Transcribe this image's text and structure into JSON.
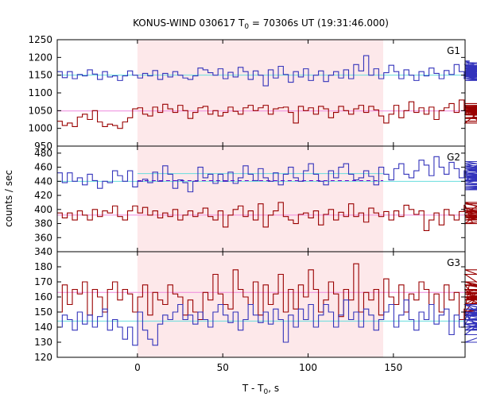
{
  "chart_data": {
    "type": "line",
    "title": "KONUS-WIND 030617 T0 = 70306s UT (19:31:46.000)",
    "title_parts": {
      "before": "KONUS-WIND 030617 T",
      "sub": "0",
      "after": " = 70306s UT (19:31:46.000)"
    },
    "xlabel_parts": {
      "before": "T - T",
      "sub": "0",
      "after": ", s"
    },
    "ylabel": "counts / sec",
    "xlim": [
      -47,
      192
    ],
    "x_ticks": [
      0,
      50,
      100,
      150
    ],
    "x_tick_labels": [
      "0",
      "50",
      "100",
      "150"
    ],
    "bin_width": 2.944,
    "shaded_interval": [
      0,
      144
    ],
    "colors": {
      "band": "#fde8ea",
      "blue": "#3333bb",
      "red": "#990000",
      "bg_blue": "#66dddd",
      "bg_red": "#ee88dd",
      "dash": "#6600cc"
    },
    "panels": [
      {
        "label": "G1",
        "ylim": [
          950,
          1250
        ],
        "y_ticks": [
          950,
          1000,
          1050,
          1100,
          1150,
          1200,
          1250
        ],
        "y_tick_labels": [
          "950",
          "1000",
          "1050",
          "1100",
          "1150",
          "1200",
          "1250"
        ],
        "background_levels": [
          {
            "color": "bg_blue",
            "level": 1150
          },
          {
            "color": "bg_red",
            "level": 1049
          }
        ],
        "series": [
          {
            "color": "blue",
            "values": [
              1160,
              1143,
              1160,
              1140,
              1152,
              1148,
              1165,
              1153,
              1138,
              1160,
              1145,
              1148,
              1135,
              1148,
              1162,
              1150,
              1142,
              1155,
              1148,
              1163,
              1138,
              1155,
              1145,
              1160,
              1150,
              1142,
              1138,
              1148,
              1170,
              1165,
              1157,
              1150,
              1168,
              1140,
              1158,
              1145,
              1172,
              1160,
              1138,
              1162,
              1150,
              1120,
              1165,
              1142,
              1175,
              1152,
              1130,
              1160,
              1145,
              1168,
              1135,
              1150,
              1162,
              1132,
              1150,
              1160,
              1142,
              1165,
              1140,
              1180,
              1162,
              1205,
              1150,
              1168,
              1140,
              1157,
              1178,
              1160,
              1140,
              1165,
              1150,
              1135,
              1160,
              1148,
              1170,
              1155,
              1140,
              1163,
              1152,
              1180,
              1160,
              1140,
              1190,
              1180,
              1155,
              1172,
              1162,
              1135,
              1148,
              1165,
              1152,
              1177,
              1140,
              1170,
              1155,
              1185,
              1160,
              1145,
              1170,
              1155,
              1140,
              1175,
              1160,
              1150,
              1168,
              1135,
              1160,
              1145,
              1170,
              1162,
              1150,
              1140,
              1155,
              1160,
              1145,
              1155,
              1148,
              1160,
              1150,
              1148,
              1165,
              1150,
              1158
            ]
          },
          {
            "color": "red",
            "values": [
              1020,
              1008,
              1015,
              1005,
              1032,
              1040,
              1025,
              1050,
              1018,
              1005,
              1012,
              1008,
              1000,
              1018,
              1030,
              1055,
              1058,
              1040,
              1035,
              1060,
              1045,
              1068,
              1055,
              1045,
              1065,
              1050,
              1028,
              1045,
              1058,
              1062,
              1040,
              1050,
              1035,
              1045,
              1060,
              1048,
              1040,
              1058,
              1065,
              1050,
              1058,
              1065,
              1040,
              1055,
              1058,
              1060,
              1045,
              1015,
              1062,
              1050,
              1058,
              1040,
              1062,
              1055,
              1030,
              1045,
              1062,
              1050,
              1040,
              1055,
              1065,
              1045,
              1062,
              1052,
              1035,
              1015,
              1040,
              1065,
              1030,
              1050,
              1075,
              1045,
              1058,
              1040,
              1060,
              1025,
              1050,
              1058,
              1070,
              1045,
              1080,
              1052,
              1040,
              1065,
              1015,
              1058,
              1045,
              1062,
              1050,
              1040,
              1055,
              1060,
              1045,
              1050,
              1055,
              1045,
              1040,
              1058,
              1050,
              1045,
              1052,
              1060,
              1040,
              1045,
              1055,
              1050,
              1030,
              1045,
              1038,
              1028,
              1020,
              1030,
              1040,
              1060,
              1045,
              1048,
              1030,
              1055,
              1045,
              1060,
              1065,
              1058,
              1070
            ]
          }
        ]
      },
      {
        "label": "G2",
        "ylim": [
          340,
          490
        ],
        "y_ticks": [
          340,
          360,
          380,
          400,
          420,
          440,
          460,
          480
        ],
        "y_tick_labels": [
          "340",
          "360",
          "380",
          "400",
          "420",
          "440",
          "460",
          "480"
        ],
        "background_levels": [
          {
            "color": "bg_blue",
            "level": 440
          },
          {
            "color": "bg_red",
            "level": 392
          },
          {
            "color": "bg_blue",
            "level": 451,
            "from": 0,
            "to": 144
          },
          {
            "color": "dash",
            "level": 441,
            "from": 0,
            "to": 144,
            "dashed": true
          }
        ],
        "series": [
          {
            "color": "blue",
            "values": [
              452,
              438,
              452,
              440,
              445,
              435,
              450,
              441,
              430,
              440,
              438,
              455,
              448,
              440,
              455,
              432,
              440,
              443,
              438,
              453,
              440,
              462,
              450,
              430,
              442,
              438,
              425,
              440,
              460,
              445,
              450,
              437,
              450,
              440,
              453,
              437,
              445,
              462,
              450,
              441,
              458,
              445,
              440,
              452,
              435,
              450,
              460,
              445,
              440,
              455,
              465,
              450,
              440,
              435,
              455,
              445,
              460,
              465,
              450,
              442,
              445,
              455,
              447,
              435,
              460,
              450,
              442,
              458,
              465,
              450,
              445,
              455,
              470,
              463,
              448,
              475,
              460,
              450,
              467,
              458,
              445,
              455,
              440,
              452,
              465,
              458,
              448,
              440,
              455,
              462,
              450,
              445,
              437,
              458,
              447,
              440,
              455,
              448,
              435,
              445,
              460,
              450,
              468,
              440,
              450,
              445,
              432,
              445,
              428,
              440,
              448,
              435,
              445,
              430,
              442,
              448,
              435,
              445,
              440,
              445,
              432,
              440,
              440
            ]
          },
          {
            "color": "red",
            "values": [
              395,
              388,
              395,
              385,
              398,
              392,
              385,
              400,
              390,
              398,
              395,
              405,
              390,
              385,
              398,
              405,
              395,
              403,
              392,
              398,
              388,
              395,
              390,
              400,
              385,
              392,
              398,
              390,
              395,
              402,
              390,
              385,
              398,
              375,
              392,
              400,
              405,
              390,
              398,
              385,
              408,
              375,
              392,
              398,
              410,
              390,
              385,
              380,
              393,
              395,
              388,
              398,
              378,
              393,
              400,
              385,
              396,
              390,
              408,
              390,
              395,
              382,
              402,
              395,
              390,
              397,
              385,
              398,
              390,
              406,
              400,
              393,
              398,
              370,
              385,
              395,
              378,
              400,
              392,
              385,
              397,
              406,
              392,
              380,
              395,
              410,
              398,
              388,
              395,
              392,
              402,
              385,
              398,
              408,
              392,
              380,
              395,
              390,
              388,
              398,
              385,
              395,
              390,
              385,
              392,
              388,
              395,
              398,
              385,
              392,
              395,
              390,
              395,
              398,
              388,
              392,
              395,
              390,
              392,
              398,
              390,
              395,
              392
            ]
          }
        ]
      },
      {
        "label": "G3",
        "ylim": [
          120,
          190
        ],
        "y_ticks": [
          120,
          130,
          140,
          150,
          160,
          170,
          180
        ],
        "y_tick_labels": [
          "120",
          "130",
          "140",
          "150",
          "160",
          "170",
          "180"
        ],
        "background_levels": [
          {
            "color": "bg_red",
            "level": 163
          },
          {
            "color": "bg_blue",
            "level": 144
          }
        ],
        "series": [
          {
            "color": "red",
            "values": [
              150,
              168,
              155,
              165,
              162,
              170,
              148,
              165,
              160,
              150,
              165,
              170,
              158,
              165,
              162,
              150,
              160,
              168,
              148,
              163,
              158,
              155,
              168,
              162,
              160,
              148,
              158,
              150,
              145,
              163,
              158,
              175,
              162,
              155,
              152,
              178,
              165,
              160,
              155,
              170,
              148,
              168,
              155,
              162,
              175,
              150,
              165,
              152,
              168,
              160,
              178,
              165,
              150,
              158,
              170,
              162,
              147,
              165,
              158,
              182,
              150,
              163,
              158,
              165,
              148,
              172,
              160,
              155,
              168,
              150,
              162,
              158,
              170,
              165,
              155,
              162,
              150,
              168,
              158,
              163,
              145,
              152,
              168,
              160,
              158,
              165,
              150,
              175,
              160,
              148,
              163,
              170,
              155,
              178,
              162,
              150,
              165,
              158,
              170,
              155,
              165,
              160,
              150,
              162,
              168,
              155,
              160,
              170,
              150,
              162,
              168,
              155,
              160,
              168,
              155,
              163,
              150,
              165,
              158,
              168,
              160,
              155,
              162
            ]
          },
          {
            "color": "blue",
            "values": [
              140,
              148,
              145,
              138,
              150,
              142,
              148,
              140,
              147,
              152,
              138,
              145,
              140,
              132,
              140,
              128,
              150,
              138,
              132,
              128,
              142,
              148,
              145,
              150,
              155,
              145,
              148,
              142,
              150,
              145,
              140,
              150,
              155,
              148,
              143,
              150,
              138,
              145,
              155,
              148,
              143,
              150,
              142,
              152,
              145,
              130,
              148,
              140,
              152,
              145,
              155,
              140,
              148,
              155,
              150,
              140,
              148,
              158,
              145,
              150,
              140,
              152,
              148,
              138,
              145,
              150,
              155,
              140,
              148,
              158,
              145,
              138,
              150,
              145,
              155,
              142,
              148,
              152,
              135,
              148,
              140,
              145,
              150,
              142,
              155,
              148,
              135,
              150,
              145,
              138,
              152,
              148,
              142,
              130,
              145,
              150,
              140,
              148,
              155,
              142,
              150,
              145,
              140,
              148,
              155,
              140,
              145,
              150,
              138,
              148,
              142,
              150,
              145,
              140,
              148,
              152,
              145,
              142,
              150,
              138,
              145,
              152,
              148
            ]
          }
        ]
      }
    ]
  }
}
